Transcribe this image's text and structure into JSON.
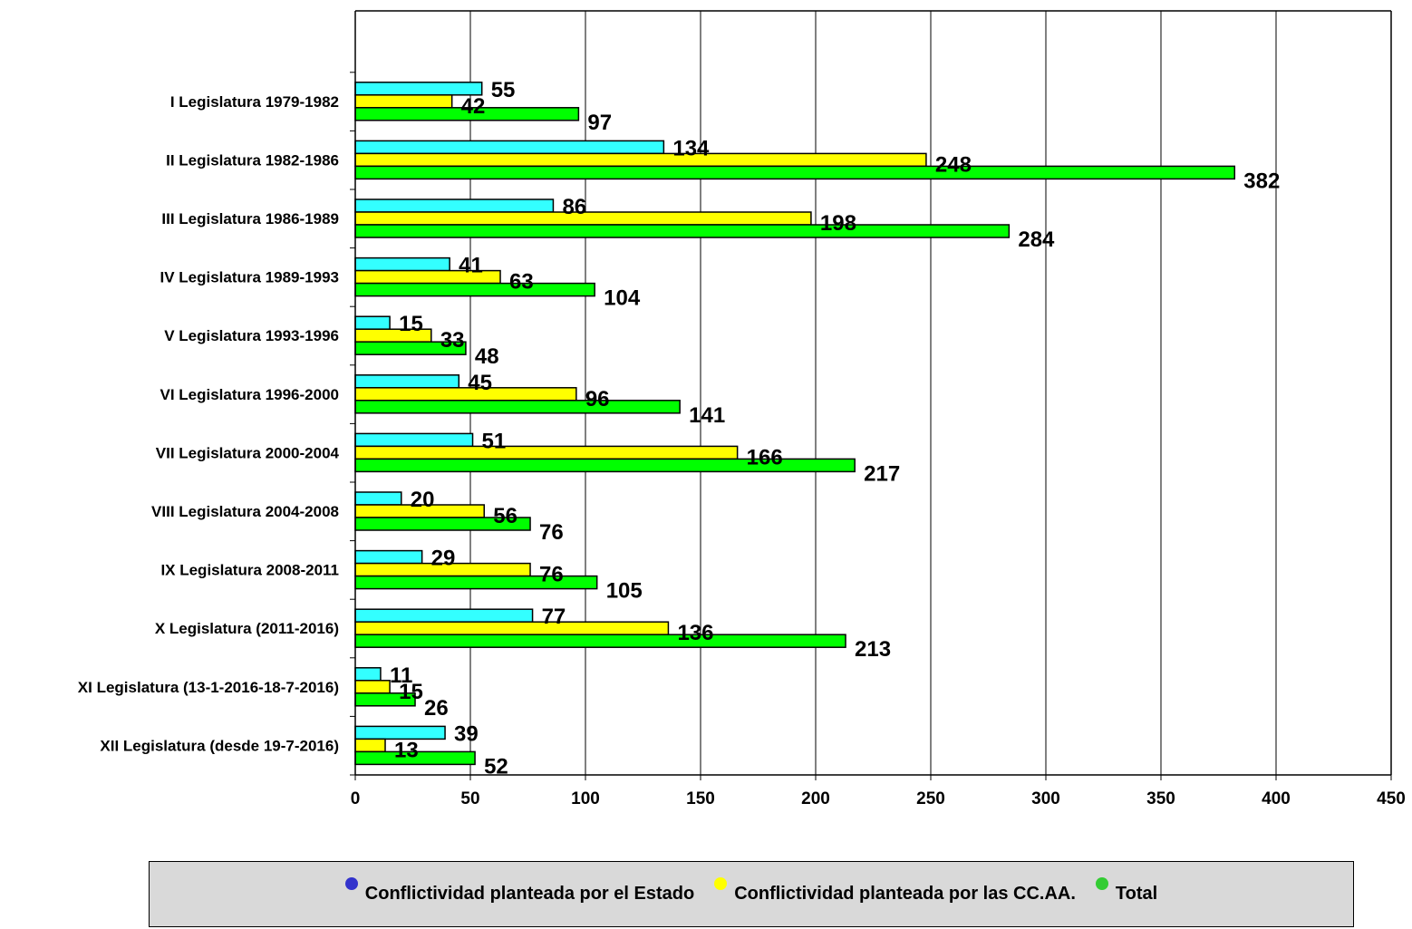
{
  "chart_data": {
    "type": "bar",
    "orientation": "horizontal",
    "categories": [
      "I Legislatura 1979-1982",
      "II Legislatura 1982-1986",
      "III Legislatura 1986-1989",
      "IV Legislatura 1989-1993",
      "V Legislatura 1993-1996",
      "VI Legislatura 1996-2000",
      "VII Legislatura 2000-2004",
      "VIII Legislatura 2004-2008",
      "IX Legislatura 2008-2011",
      "X Legislatura (2011-2016)",
      "XI Legislatura (13-1-2016-18-7-2016)",
      "XII Legislatura (desde 19-7-2016)"
    ],
    "series": [
      {
        "name": "Conflictividad planteada por el Estado",
        "color": "#33ffff",
        "marker_color": "#3333cc",
        "values": [
          55,
          134,
          86,
          41,
          15,
          45,
          51,
          20,
          29,
          77,
          11,
          39
        ]
      },
      {
        "name": "Conflictividad planteada por las CC.AA.",
        "color": "#ffff00",
        "marker_color": "#ffff00",
        "values": [
          42,
          248,
          198,
          63,
          33,
          96,
          166,
          56,
          76,
          136,
          15,
          13
        ]
      },
      {
        "name": "Total",
        "color": "#00ff00",
        "marker_color": "#33cc33",
        "values": [
          97,
          382,
          284,
          104,
          48,
          141,
          217,
          76,
          105,
          213,
          26,
          52
        ]
      }
    ],
    "xlim": [
      0,
      450
    ],
    "xticks": [
      "0",
      "50",
      "100",
      "150",
      "200",
      "250",
      "300",
      "350",
      "400",
      "450"
    ],
    "grid": "vertical",
    "legend_position": "bottom",
    "title": "",
    "xlabel": "",
    "ylabel": ""
  }
}
